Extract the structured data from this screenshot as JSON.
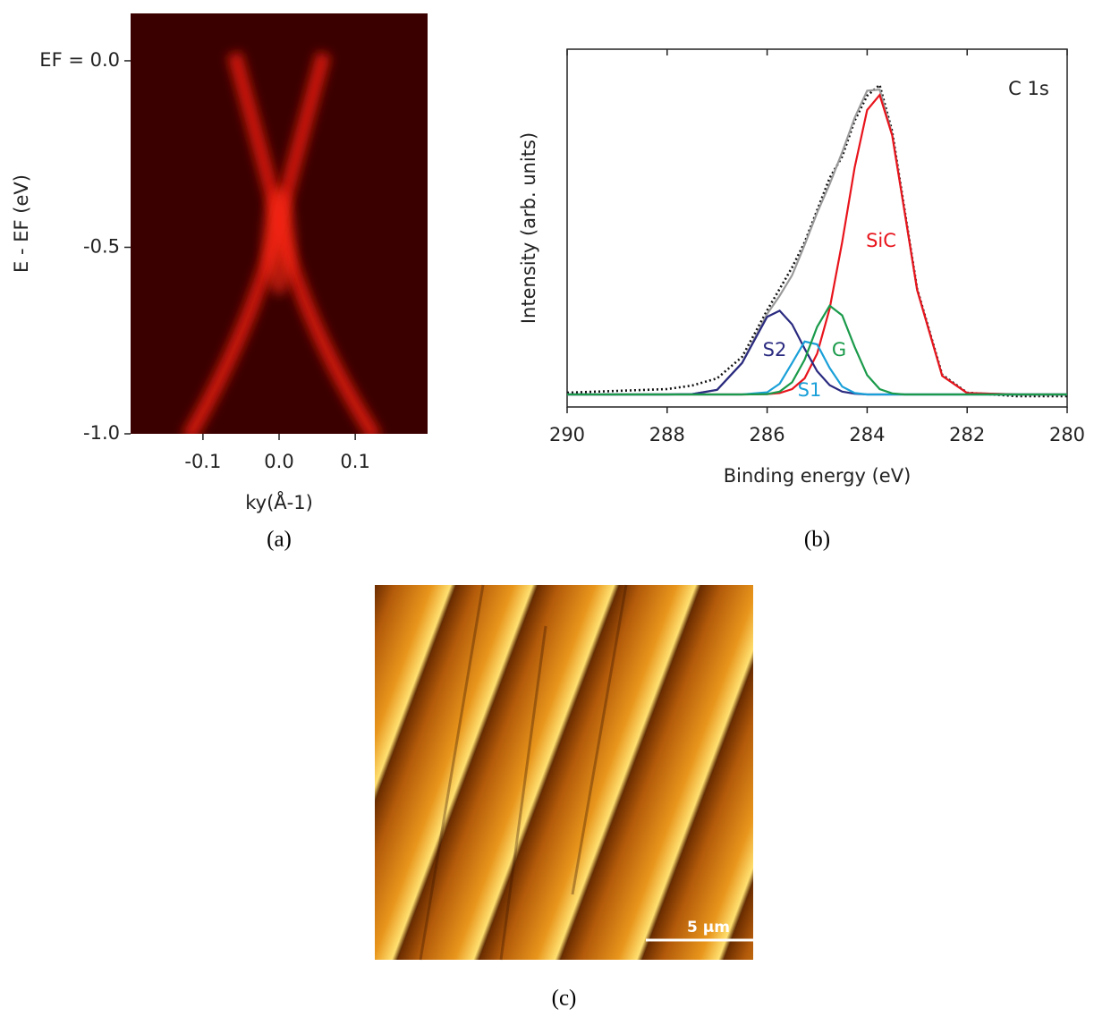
{
  "chart_data": [
    {
      "type": "image",
      "caption": "(a)",
      "xlabel": "ky(Å-1)",
      "ylabel": "E - EF (eV)",
      "xlim": [
        -0.195,
        0.195
      ],
      "ylim": [
        -1.0,
        0.127
      ],
      "xticks": [
        -0.1,
        {
          "value": 0,
          "label": "0.0"
        },
        0.1
      ],
      "yticks": [
        {
          "value": 0,
          "label": "EF = 0.0"
        },
        -0.5,
        {
          "value": -1,
          "label": "-1.0"
        }
      ]
    },
    {
      "type": "line",
      "caption": "(b)",
      "xlabel": "Binding energy (eV)",
      "ylabel": "Intensity (arb. units)",
      "annotation": "C 1s",
      "xlim": [
        290,
        280
      ],
      "ylim": [
        0,
        1
      ],
      "xticks": [
        290,
        288,
        286,
        284,
        282,
        280
      ],
      "x": [
        290,
        289,
        288,
        287.5,
        287,
        286.5,
        286,
        285.75,
        285.5,
        285.25,
        285,
        284.75,
        284.5,
        284.25,
        284,
        283.75,
        283.5,
        283.25,
        283,
        282.5,
        282,
        281,
        280
      ],
      "series": [
        {
          "color": "#111111",
          "style": "dotted",
          "values": [
            0.04,
            0.045,
            0.05,
            0.06,
            0.08,
            0.14,
            0.27,
            0.33,
            0.39,
            0.46,
            0.55,
            0.64,
            0.7,
            0.8,
            0.87,
            0.9,
            0.77,
            0.55,
            0.33,
            0.09,
            0.04,
            0.03,
            0.03
          ]
        },
        {
          "color": "#9a9a9a",
          "values": [
            0.035,
            0.035,
            0.035,
            0.036,
            0.048,
            0.123,
            0.26,
            0.311,
            0.368,
            0.453,
            0.543,
            0.623,
            0.712,
            0.808,
            0.884,
            0.887,
            0.762,
            0.545,
            0.327,
            0.087,
            0.039,
            0.035,
            0.035
          ]
        },
        {
          "name": "SiC",
          "color": "#e8141c",
          "values": [
            0.035,
            0.035,
            0.035,
            0.035,
            0.035,
            0.035,
            0.036,
            0.039,
            0.05,
            0.08,
            0.149,
            0.275,
            0.461,
            0.669,
            0.83,
            0.872,
            0.759,
            0.545,
            0.327,
            0.087,
            0.039,
            0.035,
            0.035
          ]
        },
        {
          "name": "S2",
          "color": "#2a2a80",
          "values": [
            0.035,
            0.035,
            0.035,
            0.036,
            0.048,
            0.123,
            0.252,
            0.269,
            0.231,
            0.163,
            0.1,
            0.061,
            0.043,
            0.037,
            0.035,
            0.035,
            0.035,
            0.035,
            0.035,
            0.035,
            0.035,
            0.035,
            0.035
          ]
        },
        {
          "name": "S1",
          "color": "#1aa0d8",
          "values": [
            0.035,
            0.035,
            0.035,
            0.035,
            0.035,
            0.035,
            0.041,
            0.065,
            0.123,
            0.183,
            0.175,
            0.109,
            0.057,
            0.039,
            0.035,
            0.035,
            0.035,
            0.035,
            0.035,
            0.035,
            0.035,
            0.035,
            0.035
          ]
        },
        {
          "name": "G",
          "color": "#1a9a4a",
          "values": [
            0.035,
            0.035,
            0.035,
            0.035,
            0.035,
            0.035,
            0.036,
            0.043,
            0.069,
            0.132,
            0.224,
            0.283,
            0.256,
            0.168,
            0.089,
            0.05,
            0.038,
            0.035,
            0.035,
            0.035,
            0.035,
            0.035,
            0.035
          ]
        }
      ]
    },
    {
      "type": "image",
      "caption": "(c)",
      "scale_bar_label": "5 μm"
    }
  ]
}
